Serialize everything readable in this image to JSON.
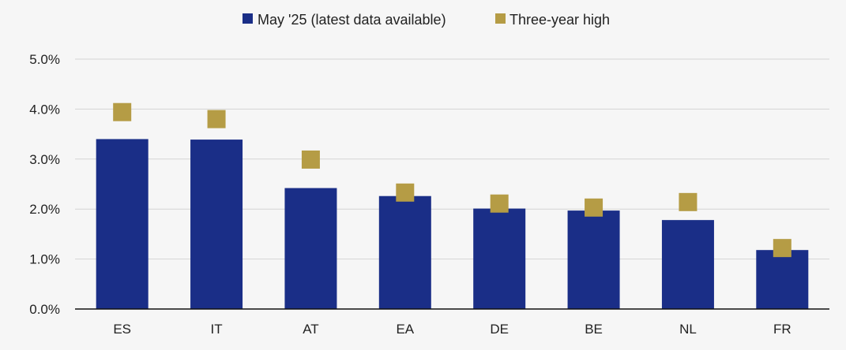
{
  "chart_data": {
    "type": "bar",
    "categories": [
      "ES",
      "IT",
      "AT",
      "EA",
      "DE",
      "BE",
      "NL",
      "FR"
    ],
    "series": [
      {
        "name": "May '25 (latest data available)",
        "kind": "bar",
        "color": "#1a2e87",
        "values": [
          3.4,
          3.39,
          2.42,
          2.26,
          2.01,
          1.97,
          1.78,
          1.18
        ]
      },
      {
        "name": "Three-year high",
        "kind": "marker",
        "color": "#b59c45",
        "values": [
          3.94,
          3.8,
          2.99,
          2.33,
          2.11,
          2.03,
          2.14,
          1.22
        ]
      }
    ],
    "ylim": [
      0,
      5
    ],
    "yticks": [
      "0.0%",
      "1.0%",
      "2.0%",
      "3.0%",
      "4.0%",
      "5.0%"
    ],
    "ytick_values": [
      0,
      1,
      2,
      3,
      4,
      5
    ],
    "grid": true,
    "legend_position": "top",
    "title": "",
    "xlabel": "",
    "ylabel": ""
  }
}
